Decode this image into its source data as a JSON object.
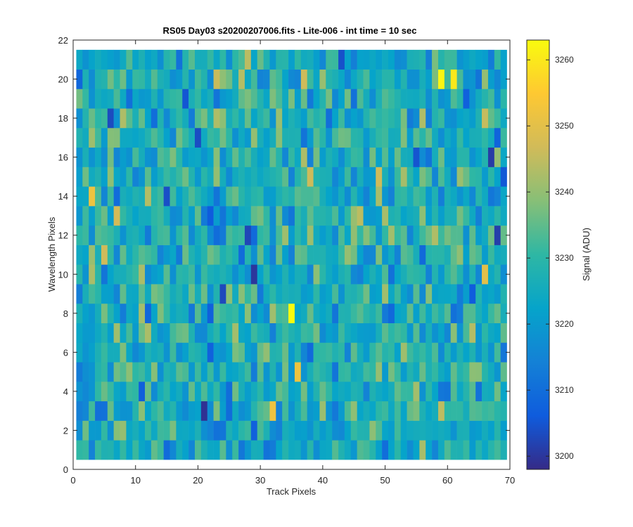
{
  "chart_data": {
    "type": "heatmap",
    "title": "RS05 Day03  s20200207006.fits - Lite-006 - int time = 10 sec",
    "xlabel": "Track Pixels",
    "ylabel": "Wavelength Pixels",
    "xlim": [
      0,
      70
    ],
    "ylim": [
      0,
      22
    ],
    "x_ticks": [
      "0",
      "10",
      "20",
      "30",
      "40",
      "50",
      "60",
      "70"
    ],
    "y_ticks": [
      "0",
      "2",
      "4",
      "6",
      "8",
      "10",
      "12",
      "14",
      "16",
      "18",
      "20"
    ],
    "x_cells": [
      1,
      69
    ],
    "y_cells": [
      1,
      21
    ],
    "colorbar": {
      "label": "Signal (ADU)",
      "range": [
        3198,
        3263
      ],
      "ticks": [
        "3200",
        "3210",
        "3220",
        "3230",
        "3240",
        "3250",
        "3260"
      ],
      "colormap": "parula"
    },
    "value_distribution": {
      "mean": 3226,
      "min": 3198,
      "max": 3263
    },
    "notable_cells": [
      {
        "x": 35,
        "y": 8,
        "value": 3263
      },
      {
        "x": 59,
        "y": 20,
        "value": 3262
      },
      {
        "x": 61,
        "y": 20,
        "value": 3260
      },
      {
        "x": 29,
        "y": 10,
        "value": 3200
      },
      {
        "x": 24,
        "y": 9,
        "value": 3203
      },
      {
        "x": 15,
        "y": 14,
        "value": 3204
      },
      {
        "x": 36,
        "y": 5,
        "value": 3252
      },
      {
        "x": 32,
        "y": 3,
        "value": 3252
      },
      {
        "x": 3,
        "y": 14,
        "value": 3252
      },
      {
        "x": 66,
        "y": 10,
        "value": 3250
      }
    ]
  }
}
